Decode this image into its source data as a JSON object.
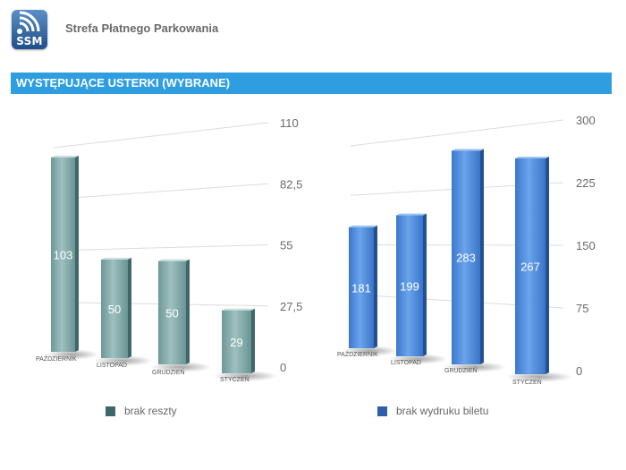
{
  "header": {
    "logo_text": "SSM",
    "app_title": "Strefa Płatnego Parkowania"
  },
  "banner": {
    "title": "WYSTĘPUJĄCE USTERKI (WYBRANE)"
  },
  "colors": {
    "banner": "#2e9ee0",
    "series_left": "#7fa8a8",
    "series_right": "#4a86d6"
  },
  "chart_data": [
    {
      "type": "bar",
      "title": "",
      "categories": [
        "PAŹDZIERNIK",
        "LISTOPAD",
        "GRUDZIEŃ",
        "STYCZEŃ"
      ],
      "series": [
        {
          "name": "brak reszty",
          "values": [
            103,
            50,
            50,
            29
          ]
        }
      ],
      "ylim": [
        0,
        110
      ],
      "yticks": [
        "0",
        "27,5",
        "55",
        "82,5",
        "110"
      ],
      "legend": "bottom"
    },
    {
      "type": "bar",
      "title": "",
      "categories": [
        "PAŹDZIERNIK",
        "LISTOPAD",
        "GRUDZIEŃ",
        "STYCZEŃ"
      ],
      "series": [
        {
          "name": "brak wydruku biletu",
          "values": [
            181,
            199,
            283,
            267
          ]
        }
      ],
      "ylim": [
        0,
        300
      ],
      "yticks": [
        "0",
        "75",
        "150",
        "225",
        "300"
      ],
      "legend": "bottom"
    }
  ]
}
